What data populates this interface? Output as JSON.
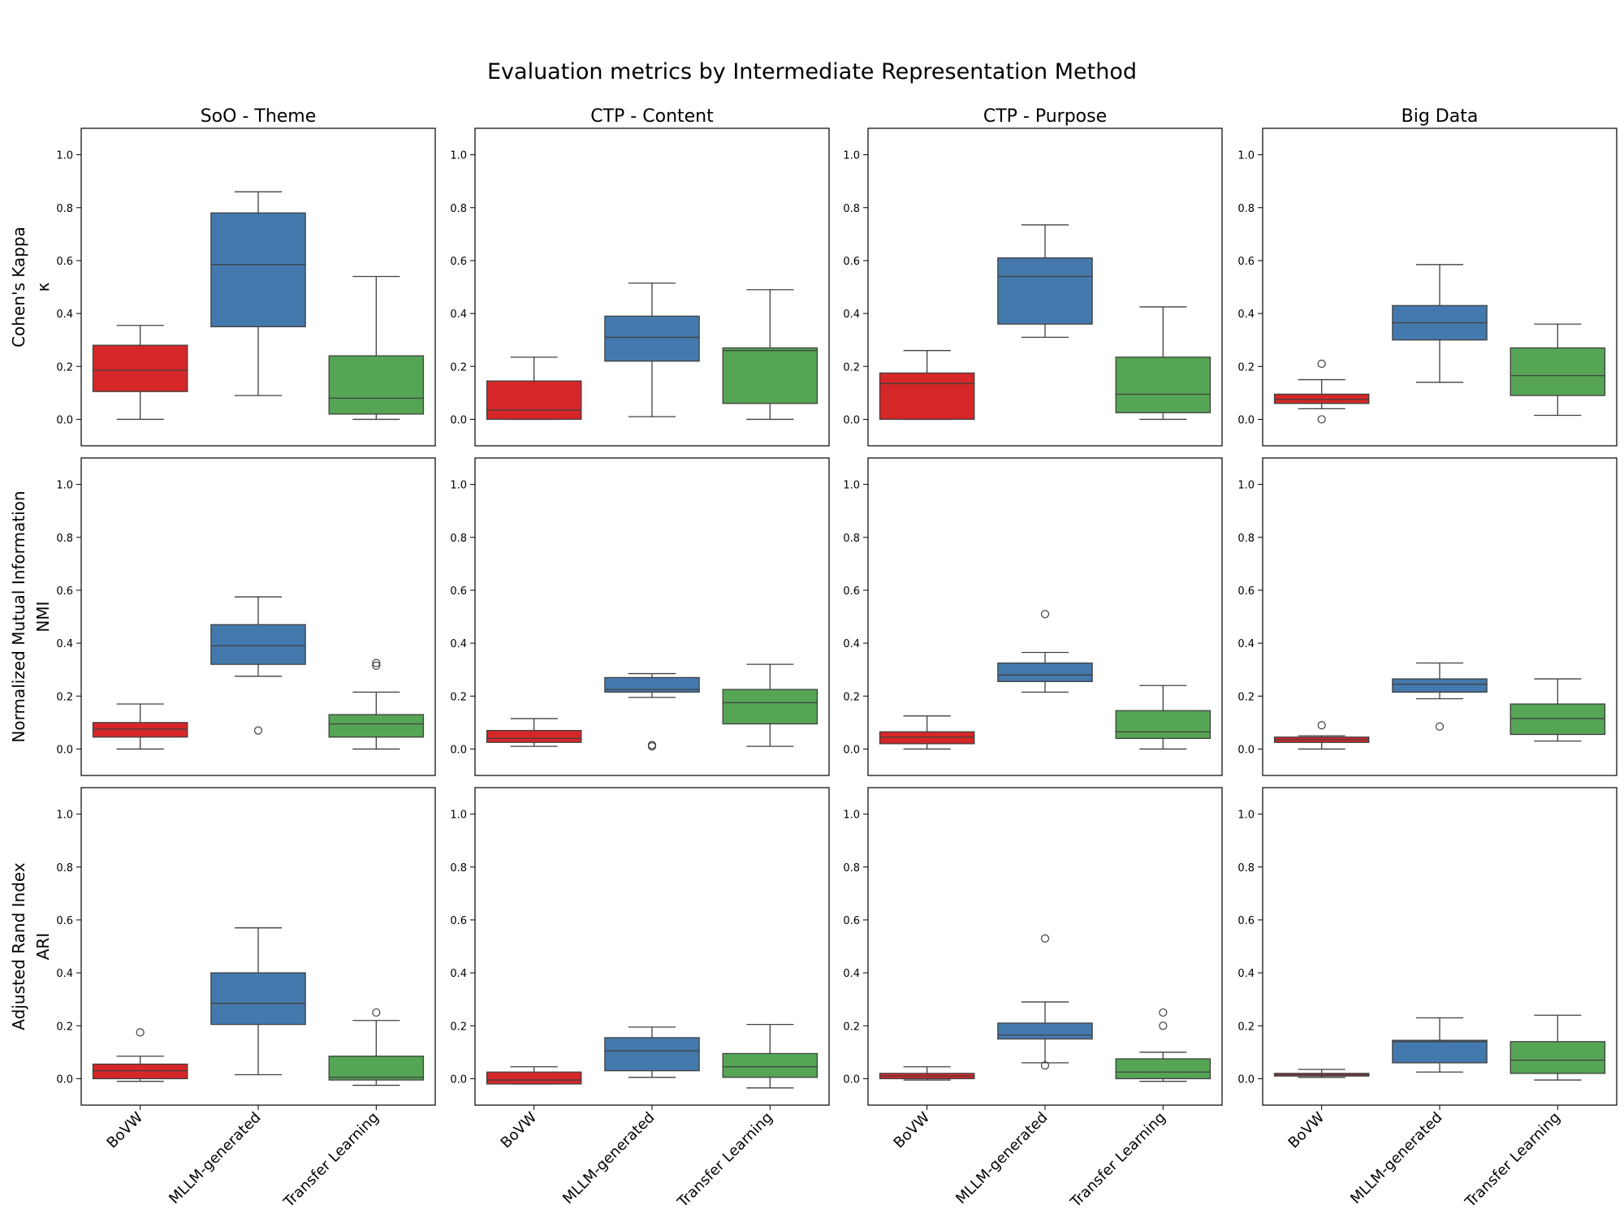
{
  "chart_data": {
    "type": "boxplot",
    "title": "Evaluation metrics by Intermediate Representation Method",
    "categories": [
      "BoVW",
      "MLLM-generated",
      "Transfer Learning"
    ],
    "colors": {
      "BoVW": "#d62728",
      "MLLM-generated": "#4479ad",
      "Transfer Learning": "#55a555"
    },
    "columns": [
      "SoO - Theme",
      "CTP - Content",
      "CTP - Purpose",
      "Big Data"
    ],
    "rows": [
      {
        "ylabel": "Cohen's Kappa",
        "ylabel2": "κ"
      },
      {
        "ylabel": "Normalized Mutual Information",
        "ylabel2": "NMI"
      },
      {
        "ylabel": "Adjusted Rand Index",
        "ylabel2": "ARI"
      }
    ],
    "ylim": [
      -0.1,
      1.1
    ],
    "yticks": [
      "0.0",
      "0.2",
      "0.4",
      "0.6",
      "0.8",
      "1.0"
    ],
    "panels": [
      [
        [
          {
            "whislo": 0.0,
            "q1": 0.105,
            "med": 0.185,
            "q3": 0.28,
            "whishi": 0.355,
            "fliers": []
          },
          {
            "whislo": 0.09,
            "q1": 0.35,
            "med": 0.585,
            "q3": 0.78,
            "whishi": 0.86,
            "fliers": []
          },
          {
            "whislo": 0.0,
            "q1": 0.02,
            "med": 0.08,
            "q3": 0.24,
            "whishi": 0.54,
            "fliers": []
          }
        ],
        [
          {
            "whislo": 0.0,
            "q1": 0.0,
            "med": 0.035,
            "q3": 0.145,
            "whishi": 0.235,
            "fliers": []
          },
          {
            "whislo": 0.01,
            "q1": 0.22,
            "med": 0.31,
            "q3": 0.39,
            "whishi": 0.515,
            "fliers": []
          },
          {
            "whislo": 0.0,
            "q1": 0.06,
            "med": 0.26,
            "q3": 0.27,
            "whishi": 0.49,
            "fliers": []
          }
        ],
        [
          {
            "whislo": 0.0,
            "q1": 0.0,
            "med": 0.135,
            "q3": 0.175,
            "whishi": 0.26,
            "fliers": []
          },
          {
            "whislo": 0.31,
            "q1": 0.36,
            "med": 0.54,
            "q3": 0.61,
            "whishi": 0.735,
            "fliers": []
          },
          {
            "whislo": 0.0,
            "q1": 0.025,
            "med": 0.095,
            "q3": 0.235,
            "whishi": 0.425,
            "fliers": []
          }
        ],
        [
          {
            "whislo": 0.04,
            "q1": 0.06,
            "med": 0.075,
            "q3": 0.095,
            "whishi": 0.15,
            "fliers": [
              0.21,
              0.0
            ]
          },
          {
            "whislo": 0.14,
            "q1": 0.3,
            "med": 0.365,
            "q3": 0.43,
            "whishi": 0.585,
            "fliers": []
          },
          {
            "whislo": 0.015,
            "q1": 0.09,
            "med": 0.165,
            "q3": 0.27,
            "whishi": 0.36,
            "fliers": []
          }
        ]
      ],
      [
        [
          {
            "whislo": 0.0,
            "q1": 0.045,
            "med": 0.075,
            "q3": 0.1,
            "whishi": 0.17,
            "fliers": []
          },
          {
            "whislo": 0.275,
            "q1": 0.32,
            "med": 0.39,
            "q3": 0.47,
            "whishi": 0.575,
            "fliers": [
              0.07
            ]
          },
          {
            "whislo": 0.0,
            "q1": 0.045,
            "med": 0.095,
            "q3": 0.13,
            "whishi": 0.215,
            "fliers": [
              0.325,
              0.315
            ]
          }
        ],
        [
          {
            "whislo": 0.01,
            "q1": 0.025,
            "med": 0.04,
            "q3": 0.07,
            "whishi": 0.115,
            "fliers": []
          },
          {
            "whislo": 0.195,
            "q1": 0.215,
            "med": 0.225,
            "q3": 0.27,
            "whishi": 0.285,
            "fliers": [
              0.015,
              0.01
            ]
          },
          {
            "whislo": 0.01,
            "q1": 0.095,
            "med": 0.175,
            "q3": 0.225,
            "whishi": 0.32,
            "fliers": []
          }
        ],
        [
          {
            "whislo": 0.0,
            "q1": 0.02,
            "med": 0.045,
            "q3": 0.065,
            "whishi": 0.125,
            "fliers": []
          },
          {
            "whislo": 0.215,
            "q1": 0.255,
            "med": 0.28,
            "q3": 0.325,
            "whishi": 0.365,
            "fliers": [
              0.51
            ]
          },
          {
            "whislo": 0.0,
            "q1": 0.04,
            "med": 0.065,
            "q3": 0.145,
            "whishi": 0.24,
            "fliers": []
          }
        ],
        [
          {
            "whislo": 0.0,
            "q1": 0.025,
            "med": 0.035,
            "q3": 0.045,
            "whishi": 0.05,
            "fliers": [
              0.09
            ]
          },
          {
            "whislo": 0.19,
            "q1": 0.215,
            "med": 0.245,
            "q3": 0.265,
            "whishi": 0.325,
            "fliers": [
              0.085
            ]
          },
          {
            "whislo": 0.03,
            "q1": 0.055,
            "med": 0.115,
            "q3": 0.17,
            "whishi": 0.265,
            "fliers": []
          }
        ]
      ],
      [
        [
          {
            "whislo": -0.01,
            "q1": 0.0,
            "med": 0.03,
            "q3": 0.055,
            "whishi": 0.085,
            "fliers": [
              0.175
            ]
          },
          {
            "whislo": 0.015,
            "q1": 0.205,
            "med": 0.285,
            "q3": 0.4,
            "whishi": 0.57,
            "fliers": []
          },
          {
            "whislo": -0.025,
            "q1": -0.005,
            "med": 0.005,
            "q3": 0.085,
            "whishi": 0.22,
            "fliers": [
              0.25
            ]
          }
        ],
        [
          {
            "whislo": -0.02,
            "q1": -0.02,
            "med": -0.005,
            "q3": 0.025,
            "whishi": 0.045,
            "fliers": []
          },
          {
            "whislo": 0.005,
            "q1": 0.03,
            "med": 0.105,
            "q3": 0.155,
            "whishi": 0.195,
            "fliers": []
          },
          {
            "whislo": -0.035,
            "q1": 0.005,
            "med": 0.045,
            "q3": 0.095,
            "whishi": 0.205,
            "fliers": []
          }
        ],
        [
          {
            "whislo": -0.005,
            "q1": 0.0,
            "med": 0.01,
            "q3": 0.02,
            "whishi": 0.045,
            "fliers": []
          },
          {
            "whislo": 0.06,
            "q1": 0.15,
            "med": 0.165,
            "q3": 0.21,
            "whishi": 0.29,
            "fliers": [
              0.53,
              0.05
            ]
          },
          {
            "whislo": -0.01,
            "q1": 0.0,
            "med": 0.025,
            "q3": 0.075,
            "whishi": 0.1,
            "fliers": [
              0.25,
              0.2
            ]
          }
        ],
        [
          {
            "whislo": 0.005,
            "q1": 0.01,
            "med": 0.015,
            "q3": 0.02,
            "whishi": 0.035,
            "fliers": []
          },
          {
            "whislo": 0.025,
            "q1": 0.06,
            "med": 0.14,
            "q3": 0.145,
            "whishi": 0.23,
            "fliers": []
          },
          {
            "whislo": -0.005,
            "q1": 0.02,
            "med": 0.07,
            "q3": 0.14,
            "whishi": 0.24,
            "fliers": []
          }
        ]
      ]
    ]
  }
}
